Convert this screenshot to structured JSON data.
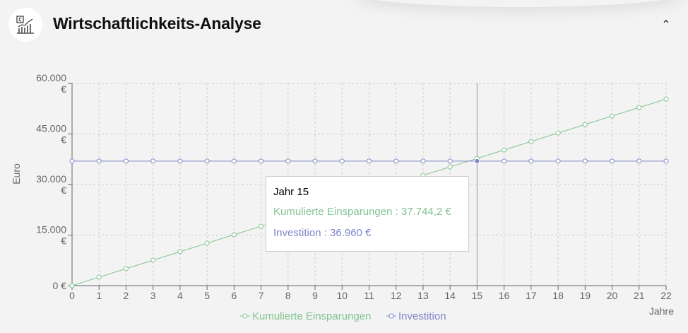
{
  "header": {
    "title": "Wirtschaftlichkeits-Analyse",
    "icon": "euro-chart-icon",
    "collapse_icon": "chevron-up-icon",
    "collapse_symbol": "⌃"
  },
  "colors": {
    "savings": "#82c591",
    "investment": "#8084cc",
    "grid": "#cccccc",
    "axis": "#666666"
  },
  "chart_data": {
    "type": "line",
    "x": [
      0,
      1,
      2,
      3,
      4,
      5,
      6,
      7,
      8,
      9,
      10,
      11,
      12,
      13,
      14,
      15,
      16,
      17,
      18,
      19,
      20,
      21,
      22
    ],
    "xlabel": "Jahre",
    "ylabel": "Euro",
    "ylim": [
      0,
      60000
    ],
    "yticks": [
      0,
      15000,
      30000,
      45000,
      60000
    ],
    "ytick_labels": [
      "0 €",
      "15.000\n€",
      "30.000\n€",
      "45.000\n€",
      "60.000\n€"
    ],
    "grid": true,
    "series": [
      {
        "name": "Kumulierte Einsparungen",
        "color": "#82c591",
        "values": [
          0,
          2516,
          5033,
          7549,
          10065,
          12581,
          15098,
          17614,
          20130,
          22646,
          25163,
          27679,
          30195,
          32711,
          35228,
          37744.2,
          40260,
          42777,
          45293,
          47809,
          50325,
          52842,
          55358
        ]
      },
      {
        "name": "Investition",
        "color": "#8084cc",
        "values": [
          36960,
          36960,
          36960,
          36960,
          36960,
          36960,
          36960,
          36960,
          36960,
          36960,
          36960,
          36960,
          36960,
          36960,
          36960,
          36960,
          36960,
          36960,
          36960,
          36960,
          36960,
          36960,
          36960
        ]
      }
    ],
    "legend_position": "bottom",
    "hover_index": 15
  },
  "tooltip": {
    "title": "Jahr 15",
    "row1": "Kumulierte Einsparungen : 37.744,2 €",
    "row2": "Investition : 36.960 €"
  }
}
